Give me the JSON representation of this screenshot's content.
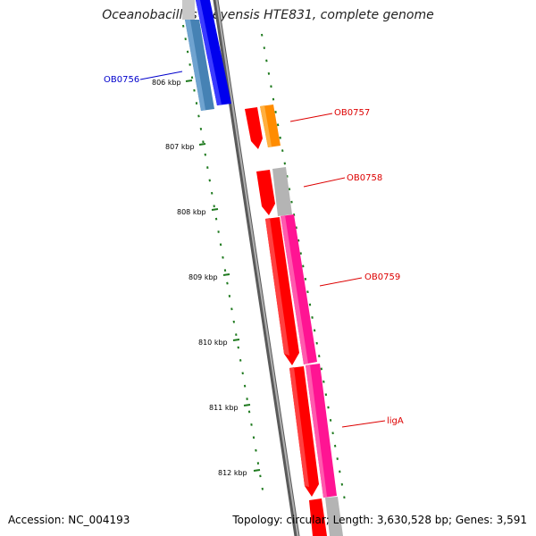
{
  "title": "Oceanobacillus iheyensis HTE831, complete genome",
  "accession": "Accession: NC_004193",
  "summary": "Topology: circular; Length: 3,630,528 bp; Genes: 3,591",
  "colors": {
    "backbone": "#8a8a8a",
    "tick": "#1f7a1f",
    "forward_label": "#0000cc",
    "reverse_label": "#dd0000",
    "cds_red": "#ff0000",
    "cds_blue": "#0000ee",
    "cds_steel": "#4682b4",
    "cds_orange": "#ff8c00",
    "cds_magenta": "#ff1493",
    "cds_gray": "#b4b4b4"
  },
  "scale_labels": [
    {
      "label": "806 kbp"
    },
    {
      "label": "807 kbp"
    },
    {
      "label": "808 kbp"
    },
    {
      "label": "809 kbp"
    },
    {
      "label": "810 kbp"
    },
    {
      "label": "811 kbp"
    },
    {
      "label": "812 kbp"
    }
  ],
  "gene_labels": [
    {
      "label": "OB0756",
      "strand": "forward"
    },
    {
      "label": "OB0757",
      "strand": "reverse"
    },
    {
      "label": "OB0758",
      "strand": "reverse"
    },
    {
      "label": "OB0759",
      "strand": "reverse"
    },
    {
      "label": "ligA",
      "strand": "reverse"
    }
  ]
}
